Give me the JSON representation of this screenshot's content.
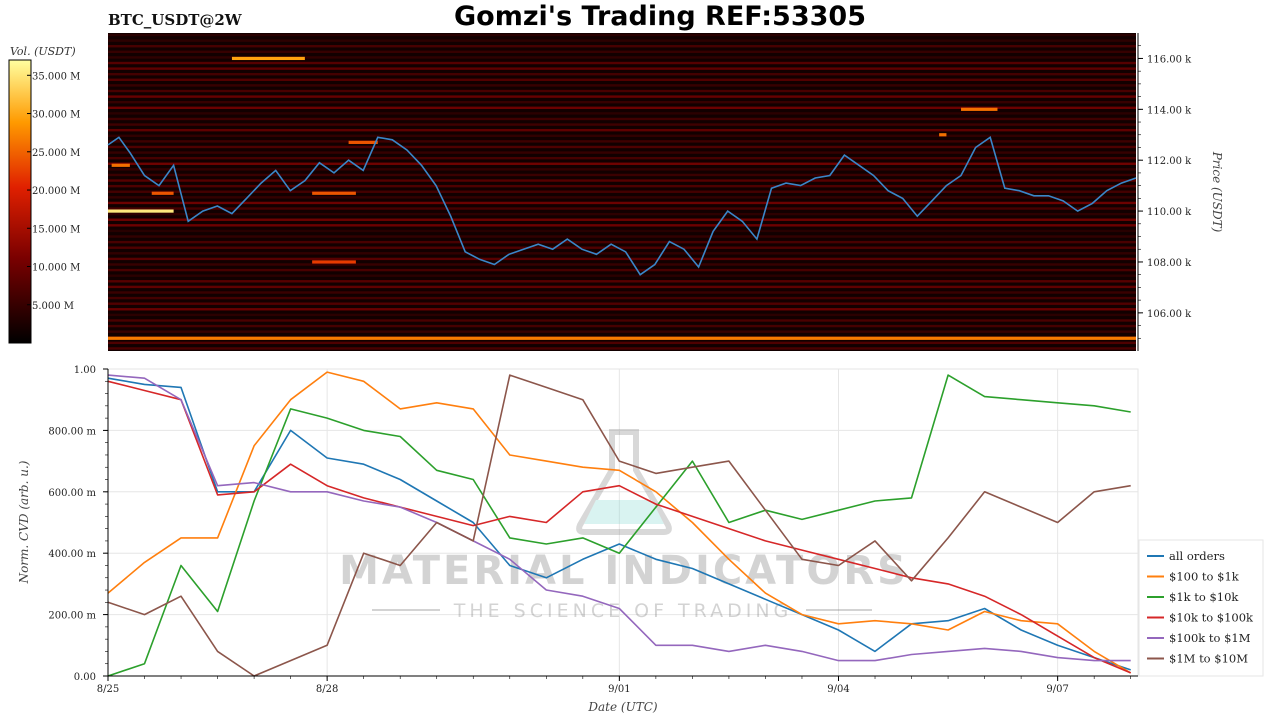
{
  "header": {
    "symbol": "BTC_USDT@2W",
    "title": "Gomzi's Trading REF:53305"
  },
  "watermark": {
    "brand": "MATERIAL INDICATORS",
    "tagline": "THE SCIENCE OF TRADING"
  },
  "colorbar": {
    "label": "Vol. (USDT)",
    "ticks": [
      "35.000 M",
      "30.000 M",
      "25.000 M",
      "20.000 M",
      "15.000 M",
      "10.000 M",
      "5.000 M"
    ],
    "tick_values": [
      35,
      30,
      25,
      20,
      15,
      10,
      5
    ],
    "range": [
      0,
      37
    ]
  },
  "chart_data": [
    {
      "type": "heatmap",
      "description_role": "order-book liquidity heatmap with price line",
      "ylabel": "Price (USDT)",
      "ylim": [
        104.5,
        117.0
      ],
      "ytick_values": [
        106,
        108,
        110,
        112,
        114,
        116
      ],
      "ytick_labels": [
        "106.00 k",
        "108.00 k",
        "110.00 k",
        "112.00 k",
        "114.00 k",
        "116.00 k"
      ],
      "xlim": [
        0,
        14.1
      ],
      "price_series": {
        "color": "#3a86c8",
        "x": [
          0,
          0.15,
          0.3,
          0.5,
          0.7,
          0.9,
          1.1,
          1.3,
          1.5,
          1.7,
          1.9,
          2.1,
          2.3,
          2.5,
          2.7,
          2.9,
          3.1,
          3.3,
          3.5,
          3.7,
          3.9,
          4.1,
          4.3,
          4.5,
          4.7,
          4.9,
          5.1,
          5.3,
          5.5,
          5.7,
          5.9,
          6.1,
          6.3,
          6.5,
          6.7,
          6.9,
          7.1,
          7.3,
          7.5,
          7.7,
          7.9,
          8.1,
          8.3,
          8.5,
          8.7,
          8.9,
          9.1,
          9.3,
          9.5,
          9.7,
          9.9,
          10.1,
          10.3,
          10.5,
          10.7,
          10.9,
          11.1,
          11.3,
          11.5,
          11.7,
          11.9,
          12.1,
          12.3,
          12.5,
          12.7,
          12.9,
          13.1,
          13.3,
          13.5,
          13.7,
          13.9,
          14.1
        ],
        "y": [
          112.6,
          112.9,
          112.3,
          111.4,
          111.0,
          111.8,
          109.6,
          110.0,
          110.2,
          109.9,
          110.5,
          111.1,
          111.6,
          110.8,
          111.2,
          111.9,
          111.5,
          112.0,
          111.6,
          112.9,
          112.8,
          112.4,
          111.8,
          111.0,
          109.8,
          108.4,
          108.1,
          107.9,
          108.3,
          108.5,
          108.7,
          108.5,
          108.9,
          108.5,
          108.3,
          108.7,
          108.4,
          107.5,
          107.9,
          108.8,
          108.5,
          107.8,
          109.2,
          110.0,
          109.6,
          108.9,
          110.9,
          111.1,
          111.0,
          111.3,
          111.4,
          112.2,
          111.8,
          111.4,
          110.8,
          110.5,
          109.8,
          110.4,
          111.0,
          111.4,
          112.5,
          112.9,
          110.9,
          110.8,
          110.6,
          110.6,
          110.4,
          110.0,
          110.3,
          110.8,
          111.1,
          111.3
        ]
      },
      "liquidity_levels": [
        {
          "price": 116.0,
          "x0": 1.7,
          "x1": 2.7,
          "intensity": 0.8
        },
        {
          "price": 114.0,
          "x0": 11.7,
          "x1": 12.2,
          "intensity": 0.7
        },
        {
          "price": 113.0,
          "x0": 11.4,
          "x1": 11.5,
          "intensity": 0.7
        },
        {
          "price": 112.7,
          "x0": 3.3,
          "x1": 3.7,
          "intensity": 0.65
        },
        {
          "price": 111.8,
          "x0": 0.05,
          "x1": 0.3,
          "intensity": 0.7
        },
        {
          "price": 110.7,
          "x0": 0.6,
          "x1": 0.9,
          "intensity": 0.65
        },
        {
          "price": 110.7,
          "x0": 2.8,
          "x1": 3.4,
          "intensity": 0.65
        },
        {
          "price": 110.0,
          "x0": 0.0,
          "x1": 0.9,
          "intensity": 0.95
        },
        {
          "price": 108.0,
          "x0": 2.8,
          "x1": 3.4,
          "intensity": 0.6
        },
        {
          "price": 105.0,
          "x0": 0.0,
          "x1": 14.1,
          "intensity": 0.72
        }
      ]
    },
    {
      "type": "line",
      "xlabel": "Date (UTC)",
      "ylabel": "Norm. CVD (arb. u.)",
      "ylim": [
        0,
        1.0
      ],
      "xlim": [
        0,
        14.1
      ],
      "ytick_values": [
        0,
        0.2,
        0.4,
        0.6,
        0.8,
        1.0
      ],
      "ytick_labels": [
        "0.00",
        "200.00 m",
        "400.00 m",
        "600.00 m",
        "800.00 m",
        "1.00"
      ],
      "xtick_values": [
        0,
        3,
        7,
        10,
        13
      ],
      "xtick_labels": [
        "8/25",
        "8/28",
        "9/01",
        "9/04",
        "9/07"
      ],
      "legend_position": "right",
      "x": [
        0,
        0.5,
        1.0,
        1.5,
        2.0,
        2.5,
        3.0,
        3.5,
        4.0,
        4.5,
        5.0,
        5.5,
        6.0,
        6.5,
        7.0,
        7.5,
        8.0,
        8.5,
        9.0,
        9.5,
        10.0,
        10.5,
        11.0,
        11.5,
        12.0,
        12.5,
        13.0,
        13.5,
        14.0
      ],
      "series": [
        {
          "name": "all orders",
          "color": "#1f77b4",
          "values": [
            0.97,
            0.95,
            0.94,
            0.6,
            0.6,
            0.8,
            0.71,
            0.69,
            0.64,
            0.57,
            0.5,
            0.36,
            0.32,
            0.38,
            0.43,
            0.38,
            0.35,
            0.3,
            0.25,
            0.2,
            0.15,
            0.08,
            0.17,
            0.18,
            0.22,
            0.15,
            0.1,
            0.06,
            0.02
          ]
        },
        {
          "name": "$100 to $1k",
          "color": "#ff7f0e",
          "values": [
            0.27,
            0.37,
            0.45,
            0.45,
            0.75,
            0.9,
            0.99,
            0.96,
            0.87,
            0.89,
            0.87,
            0.72,
            0.7,
            0.68,
            0.67,
            0.6,
            0.5,
            0.38,
            0.27,
            0.2,
            0.17,
            0.18,
            0.17,
            0.15,
            0.21,
            0.18,
            0.17,
            0.08,
            0.01
          ]
        },
        {
          "name": "$1k to $10k",
          "color": "#2ca02c",
          "values": [
            0.0,
            0.04,
            0.36,
            0.21,
            0.57,
            0.87,
            0.84,
            0.8,
            0.78,
            0.67,
            0.64,
            0.45,
            0.43,
            0.45,
            0.4,
            0.55,
            0.7,
            0.5,
            0.54,
            0.51,
            0.54,
            0.57,
            0.58,
            0.98,
            0.91,
            0.9,
            0.89,
            0.88,
            0.86
          ]
        },
        {
          "name": "$10k to $100k",
          "color": "#d62728",
          "values": [
            0.96,
            0.93,
            0.9,
            0.59,
            0.6,
            0.69,
            0.62,
            0.58,
            0.55,
            0.52,
            0.49,
            0.52,
            0.5,
            0.6,
            0.62,
            0.56,
            0.52,
            0.48,
            0.44,
            0.41,
            0.38,
            0.35,
            0.32,
            0.3,
            0.26,
            0.2,
            0.13,
            0.06,
            0.01
          ]
        },
        {
          "name": "$100k to $1M",
          "color": "#9467bd",
          "values": [
            0.98,
            0.97,
            0.9,
            0.62,
            0.63,
            0.6,
            0.6,
            0.57,
            0.55,
            0.5,
            0.44,
            0.38,
            0.28,
            0.26,
            0.22,
            0.1,
            0.1,
            0.08,
            0.1,
            0.08,
            0.05,
            0.05,
            0.07,
            0.08,
            0.09,
            0.08,
            0.06,
            0.05,
            0.05
          ]
        },
        {
          "name": "$1M to $10M",
          "color": "#8c564b",
          "values": [
            0.24,
            0.2,
            0.26,
            0.08,
            0.0,
            0.05,
            0.1,
            0.4,
            0.36,
            0.5,
            0.44,
            0.98,
            0.94,
            0.9,
            0.7,
            0.66,
            0.68,
            0.7,
            0.54,
            0.38,
            0.36,
            0.44,
            0.31,
            0.45,
            0.6,
            0.55,
            0.5,
            0.6,
            0.62
          ]
        }
      ]
    }
  ]
}
